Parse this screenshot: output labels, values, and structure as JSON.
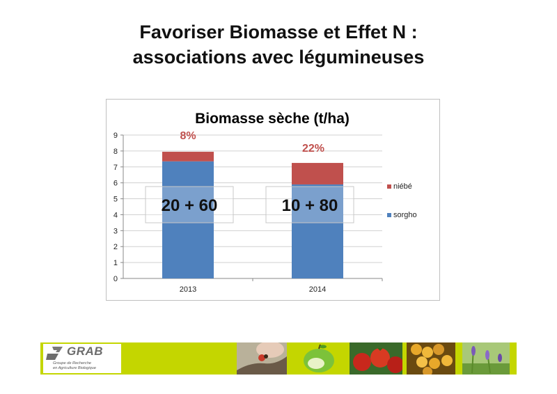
{
  "slide": {
    "title_line1": "Favoriser Biomasse et Effet N :",
    "title_line2": "associations avec légumineuses"
  },
  "chart_data": {
    "type": "bar",
    "stacked": true,
    "title": "Biomasse sèche (t/ha)",
    "categories": [
      "2013",
      "2014"
    ],
    "series": [
      {
        "name": "sorgho",
        "values": [
          7.35,
          5.9
        ],
        "color": "#4f81bd"
      },
      {
        "name": "niébé",
        "values": [
          0.6,
          1.35
        ],
        "color": "#c0504d"
      }
    ],
    "ylim": [
      0,
      9
    ],
    "yticks": [
      "0",
      "1",
      "2",
      "3",
      "4",
      "5",
      "6",
      "7",
      "8",
      "9"
    ],
    "grid": true,
    "legend_position": "right",
    "legend": [
      "niébé",
      "sorgho"
    ],
    "percent_labels": [
      "8%",
      "22%"
    ],
    "percent_color": "#c0504d",
    "ratio_labels": [
      "20 + 60",
      "10 + 80"
    ]
  },
  "footer": {
    "logo_text": "GRAB",
    "logo_sub_line1": "Groupe de Recherche",
    "logo_sub_line2": "en Agriculture Biologique",
    "band_color": "#c4d600"
  }
}
